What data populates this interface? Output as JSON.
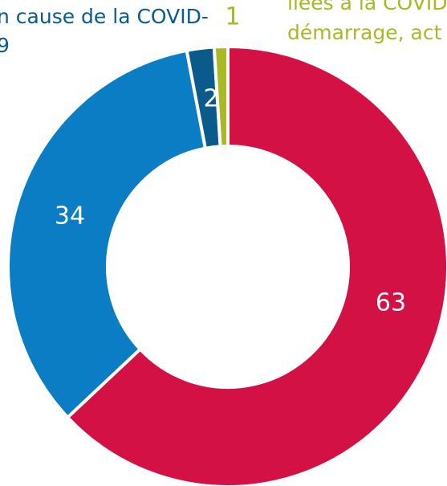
{
  "chart_data": {
    "type": "donut",
    "categories": [
      null,
      null,
      "n cause de la COVID-\n9",
      "liées à la COVID\ndémarrage, act"
    ],
    "values": [
      63,
      34,
      2,
      1
    ],
    "colors": [
      "#d31145",
      "#0a7dc4",
      "#0b5a8c",
      "#a9b825"
    ]
  }
}
